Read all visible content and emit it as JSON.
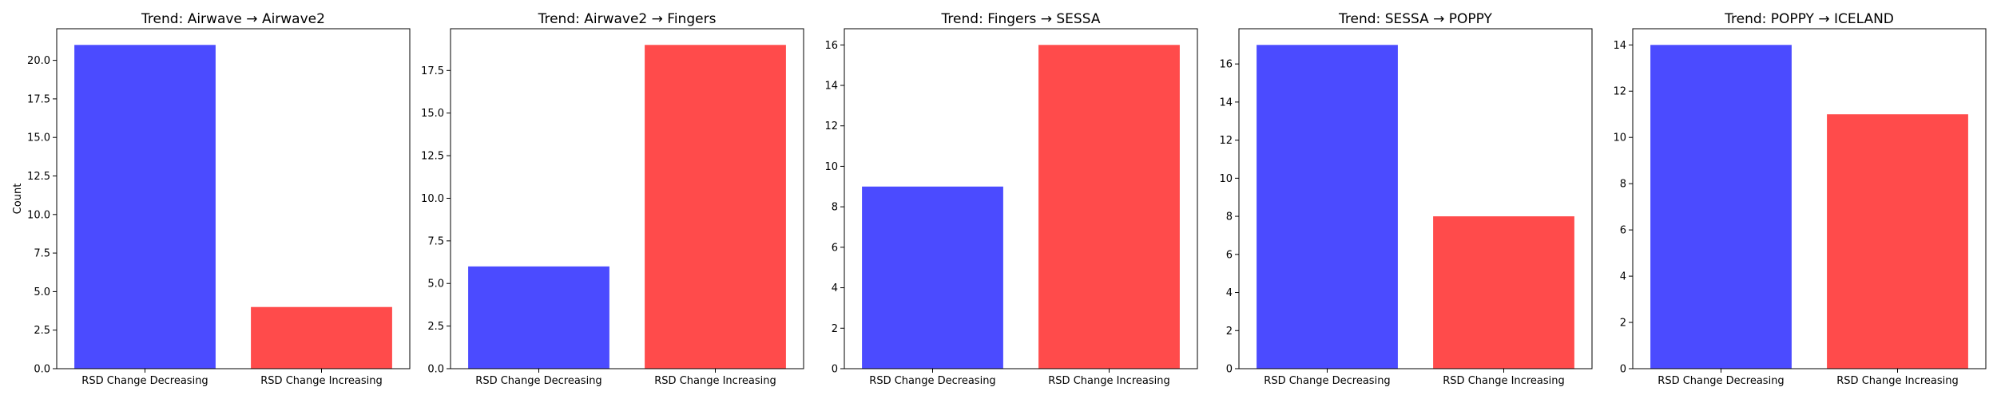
{
  "figure": {
    "ylabel": "Count"
  },
  "colors": {
    "RSD Change Decreasing": "#4b4bff",
    "RSD Change Increasing": "#ff4b4b"
  },
  "chart_data": [
    {
      "type": "bar",
      "title": "Trend: Airwave → Airwave2",
      "categories": [
        "RSD Change Decreasing",
        "RSD Change Increasing"
      ],
      "values": [
        21,
        4
      ],
      "ylabel": "Count",
      "ylim": [
        0,
        22.05
      ],
      "yticks": [
        0,
        2.5,
        5,
        7.5,
        10,
        12.5,
        15,
        17.5,
        20
      ],
      "ytick_labels": [
        "0.0",
        "2.5",
        "5.0",
        "7.5",
        "10.0",
        "12.5",
        "15.0",
        "17.5",
        "20.0"
      ],
      "grid": false
    },
    {
      "type": "bar",
      "title": "Trend: Airwave2 → Fingers",
      "categories": [
        "RSD Change Decreasing",
        "RSD Change Increasing"
      ],
      "values": [
        6,
        19
      ],
      "ylabel": "",
      "ylim": [
        0,
        19.95
      ],
      "yticks": [
        0,
        2.5,
        5,
        7.5,
        10,
        12.5,
        15,
        17.5
      ],
      "ytick_labels": [
        "0.0",
        "2.5",
        "5.0",
        "7.5",
        "10.0",
        "12.5",
        "15.0",
        "17.5"
      ],
      "grid": false
    },
    {
      "type": "bar",
      "title": "Trend: Fingers → SESSA",
      "categories": [
        "RSD Change Decreasing",
        "RSD Change Increasing"
      ],
      "values": [
        9,
        16
      ],
      "ylabel": "",
      "ylim": [
        0,
        16.8
      ],
      "yticks": [
        0,
        2,
        4,
        6,
        8,
        10,
        12,
        14,
        16
      ],
      "ytick_labels": [
        "0",
        "2",
        "4",
        "6",
        "8",
        "10",
        "12",
        "14",
        "16"
      ],
      "grid": false
    },
    {
      "type": "bar",
      "title": "Trend: SESSA → POPPY",
      "categories": [
        "RSD Change Decreasing",
        "RSD Change Increasing"
      ],
      "values": [
        17,
        8
      ],
      "ylabel": "",
      "ylim": [
        0,
        17.85
      ],
      "yticks": [
        0,
        2,
        4,
        6,
        8,
        10,
        12,
        14,
        16
      ],
      "ytick_labels": [
        "0",
        "2",
        "4",
        "6",
        "8",
        "10",
        "12",
        "14",
        "16"
      ],
      "grid": false
    },
    {
      "type": "bar",
      "title": "Trend: POPPY → ICELAND",
      "categories": [
        "RSD Change Decreasing",
        "RSD Change Increasing"
      ],
      "values": [
        14,
        11
      ],
      "ylabel": "",
      "ylim": [
        0,
        14.7
      ],
      "yticks": [
        0,
        2,
        4,
        6,
        8,
        10,
        12,
        14
      ],
      "ytick_labels": [
        "0",
        "2",
        "4",
        "6",
        "8",
        "10",
        "12",
        "14"
      ],
      "grid": false
    }
  ]
}
